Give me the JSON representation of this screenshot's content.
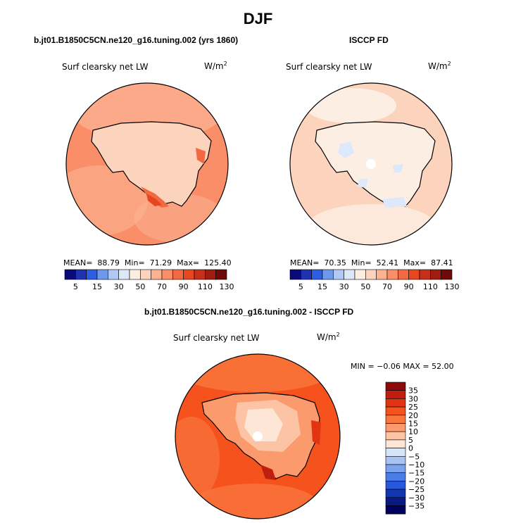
{
  "header": {
    "title": "DJF"
  },
  "panels": {
    "model": {
      "case_title": "b.jt01.B1850C5CN.ne120_g16.tuning.002 (yrs 1860)",
      "variable_label": "Surf clearsky net LW",
      "units_base": "W/m",
      "units_exp": "2",
      "mean_label": "MEAN=",
      "mean_value": "88.79",
      "min_label": "Min=",
      "min_value": "71.29",
      "max_label": "Max=",
      "max_value": "125.40"
    },
    "obs": {
      "case_title": "ISCCP FD",
      "variable_label": "Surf clearsky net LW",
      "units_base": "W/m",
      "units_exp": "2",
      "mean_label": "MEAN=",
      "mean_value": "70.35",
      "min_label": "Min=",
      "min_value": "52.41",
      "max_label": "Max=",
      "max_value": "87.41"
    },
    "diff": {
      "case_title": "b.jt01.B1850C5CN.ne120_g16.tuning.002 - ISCCP FD",
      "variable_label": "Surf clearsky net LW",
      "units_base": "W/m",
      "units_exp": "2",
      "stats_text": "MIN =  −0.06 MAX =  52.00"
    }
  },
  "chart_data": [
    {
      "type": "heatmap",
      "projection": "south-polar-stereographic",
      "title": "b.jt01.B1850C5CN.ne120_g16.tuning.002 (yrs 1860)",
      "variable": "Surf clearsky net LW",
      "units": "W/m^2",
      "mean": 88.79,
      "min": 71.29,
      "max": 125.4,
      "colorbar_levels": [
        5,
        15,
        30,
        50,
        70,
        90,
        110,
        130
      ],
      "colorbar_colors": [
        "#0a0a7a",
        "#1f32b0",
        "#2b5fe0",
        "#6f97ee",
        "#b1c8f5",
        "#dde8fb",
        "#fdeee4",
        "#fcd3bc",
        "#fbb293",
        "#f98e68",
        "#f36a42",
        "#e5471f",
        "#c6301a",
        "#9e1c10",
        "#6e0a08"
      ],
      "dominant_region_values": {
        "ocean": 100,
        "antarctica_interior": 80,
        "coastal_max": 125
      }
    },
    {
      "type": "heatmap",
      "projection": "south-polar-stereographic",
      "title": "ISCCP FD",
      "variable": "Surf clearsky net LW",
      "units": "W/m^2",
      "mean": 70.35,
      "min": 52.41,
      "max": 87.41,
      "colorbar_levels": [
        5,
        15,
        30,
        50,
        70,
        90,
        110,
        130
      ],
      "colorbar_colors": [
        "#0a0a7a",
        "#1f32b0",
        "#2b5fe0",
        "#6f97ee",
        "#b1c8f5",
        "#dde8fb",
        "#fdeee4",
        "#fcd3bc",
        "#fbb293",
        "#f98e68",
        "#f36a42",
        "#e5471f",
        "#c6301a",
        "#9e1c10",
        "#6e0a08"
      ],
      "dominant_region_values": {
        "ocean": 80,
        "antarctica_interior": 70,
        "minimum_patches": 55
      }
    },
    {
      "type": "heatmap",
      "projection": "south-polar-stereographic",
      "title": "b.jt01.B1850C5CN.ne120_g16.tuning.002 - ISCCP FD",
      "variable": "Surf clearsky net LW",
      "units": "W/m^2",
      "min": -0.06,
      "max": 52.0,
      "colorbar_orientation": "vertical",
      "colorbar_levels": [
        "35",
        "30",
        "25",
        "20",
        "15",
        "10",
        "5",
        "0",
        "−5",
        "−10",
        "−15",
        "−20",
        "−25",
        "−30",
        "−35"
      ],
      "colorbar_colors": [
        "#8b0a0a",
        "#c01e0e",
        "#e23412",
        "#f5521e",
        "#f9753c",
        "#fb9a6c",
        "#fcc4a4",
        "#fde6d6",
        "#d6e4f8",
        "#a8c3f2",
        "#7ba2ec",
        "#4b7de6",
        "#2658de",
        "#1236b0",
        "#0a1a80",
        "#000060"
      ],
      "dominant_region_values": {
        "ocean": 20,
        "antarctica_interior": 5,
        "coastal_max": 35
      }
    }
  ]
}
